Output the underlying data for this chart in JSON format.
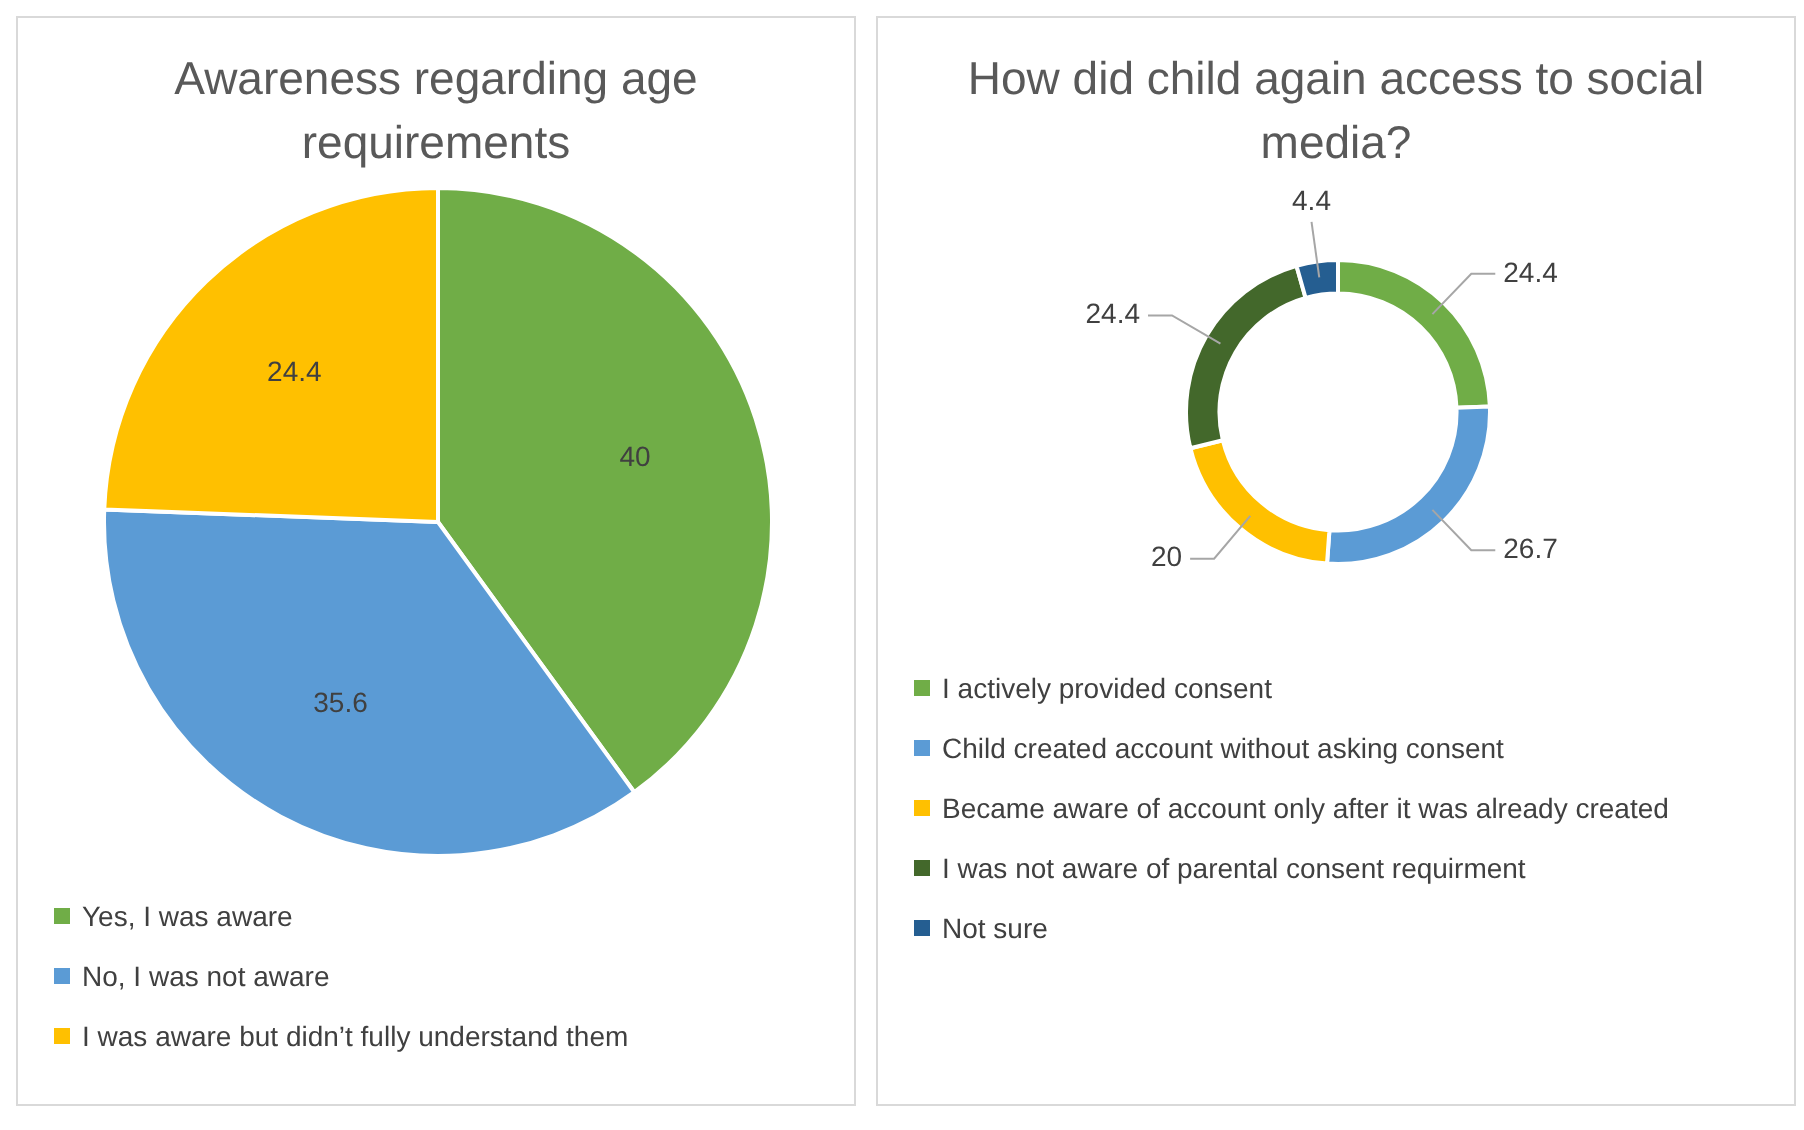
{
  "chart_data": [
    {
      "type": "pie",
      "title": "Awareness regarding age requirements",
      "categories": [
        "Yes, I was aware",
        "No, I was not aware",
        "I was aware but didn’t fully understand them"
      ],
      "values": [
        40,
        35.6,
        24.4
      ],
      "colors": [
        "#70ad47",
        "#5b9bd5",
        "#ffc000"
      ],
      "data_labels": true,
      "legend": "bottom"
    },
    {
      "type": "donut",
      "title": "How did child again access to social media?",
      "categories": [
        "I actively provided consent",
        "Child created account without asking consent",
        "Became aware of account only after it was already created",
        "I was not aware of parental consent requirment",
        "Not sure"
      ],
      "values": [
        24.4,
        26.7,
        20,
        24.4,
        4.4
      ],
      "colors": [
        "#70ad47",
        "#5b9bd5",
        "#ffc000",
        "#43682b",
        "#255e91"
      ],
      "data_labels": true,
      "legend": "bottom"
    }
  ]
}
